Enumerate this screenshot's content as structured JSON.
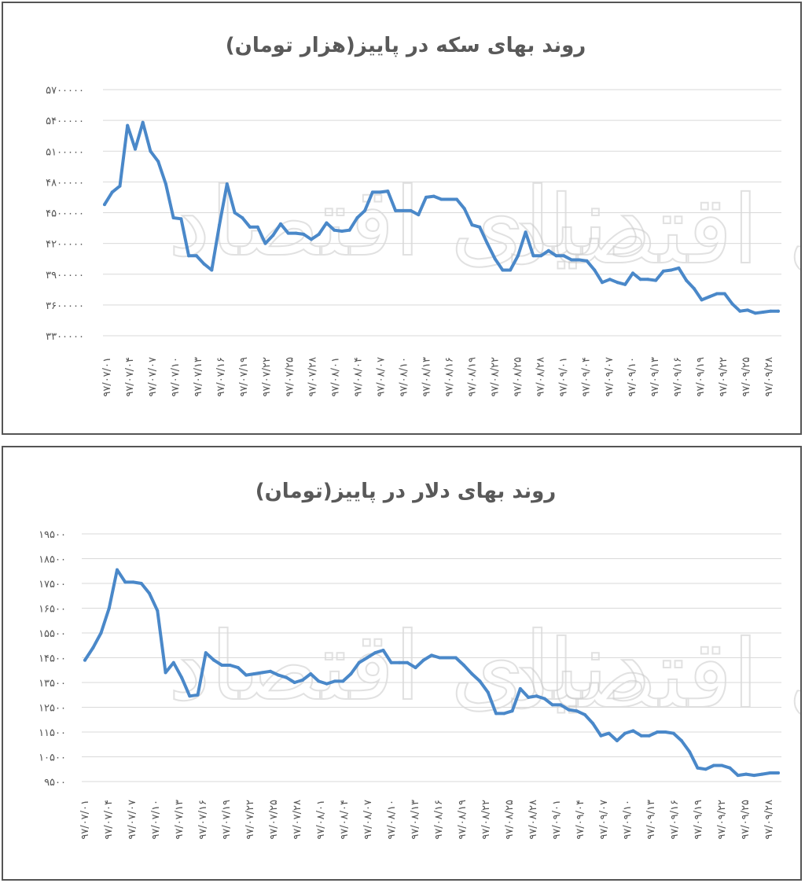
{
  "chart_data": [
    {
      "type": "line",
      "title": "روند بهای سکه در پاییز(هزار تومان)",
      "watermark": "دنیای اقتصاد",
      "color": "#4a88c9",
      "ylim": [
        3300000,
        5700000
      ],
      "yticks": [
        "۳۳۰۰۰۰۰",
        "۳۶۰۰۰۰۰",
        "۳۹۰۰۰۰۰",
        "۴۲۰۰۰۰۰",
        "۴۵۰۰۰۰۰",
        "۴۸۰۰۰۰۰",
        "۵۱۰۰۰۰۰",
        "۵۴۰۰۰۰۰",
        "۵۷۰۰۰۰۰"
      ],
      "xticks": [
        "۹۷/۰۷/۰۱",
        "۹۷/۰۷/۰۴",
        "۹۷/۰۷/۰۷",
        "۹۷/۰۷/۱۰",
        "۹۷/۰۷/۱۳",
        "۹۷/۰۷/۱۶",
        "۹۷/۰۷/۱۹",
        "۹۷/۰۷/۲۲",
        "۹۷/۰۷/۲۵",
        "۹۷/۰۷/۲۸",
        "۹۷/۰۸/۰۱",
        "۹۷/۰۸/۰۴",
        "۹۷/۰۸/۰۷",
        "۹۷/۰۸/۱۰",
        "۹۷/۰۸/۱۳",
        "۹۷/۰۸/۱۶",
        "۹۷/۰۸/۱۹",
        "۹۷/۰۸/۲۲",
        "۹۷/۰۸/۲۵",
        "۹۷/۰۸/۲۸",
        "۹۷/۰۹/۰۱",
        "۹۷/۰۹/۰۴",
        "۹۷/۰۹/۰۷",
        "۹۷/۰۹/۱۰",
        "۹۷/۰۹/۱۳",
        "۹۷/۰۹/۱۶",
        "۹۷/۰۹/۱۹",
        "۹۷/۰۹/۲۲",
        "۹۷/۰۹/۲۵",
        "۹۷/۰۹/۲۸"
      ],
      "values": [
        4580000,
        4700000,
        4760000,
        5350000,
        5120000,
        5380000,
        5100000,
        5000000,
        4780000,
        4450000,
        4440000,
        4080000,
        4080000,
        4000000,
        3940000,
        4380000,
        4780000,
        4500000,
        4450000,
        4360000,
        4360000,
        4200000,
        4280000,
        4390000,
        4300000,
        4300000,
        4290000,
        4240000,
        4290000,
        4400000,
        4330000,
        4320000,
        4330000,
        4450000,
        4520000,
        4700000,
        4700000,
        4710000,
        4520000,
        4520000,
        4520000,
        4480000,
        4650000,
        4660000,
        4630000,
        4630000,
        4630000,
        4540000,
        4380000,
        4360000,
        4200000,
        4050000,
        3940000,
        3940000,
        4080000,
        4310000,
        4080000,
        4080000,
        4130000,
        4080000,
        4080000,
        4040000,
        4040000,
        4030000,
        3940000,
        3820000,
        3850000,
        3820000,
        3800000,
        3910000,
        3850000,
        3850000,
        3840000,
        3930000,
        3940000,
        3960000,
        3840000,
        3760000,
        3650000,
        3680000,
        3710000,
        3710000,
        3610000,
        3540000,
        3550000,
        3520000,
        3530000,
        3540000,
        3540000
      ]
    },
    {
      "type": "line",
      "title": "روند بهای دلار در پاییز(تومان)",
      "watermark": "دنیای اقتصاد",
      "color": "#4a88c9",
      "ylim": [
        9500,
        19500
      ],
      "yticks": [
        "۹۵۰۰",
        "۱۰۵۰۰",
        "۱۱۵۰۰",
        "۱۲۵۰۰",
        "۱۳۵۰۰",
        "۱۴۵۰۰",
        "۱۵۵۰۰",
        "۱۶۵۰۰",
        "۱۷۵۰۰",
        "۱۸۵۰۰",
        "۱۹۵۰۰"
      ],
      "xticks": [
        "۹۷/۰۷/۰۱",
        "۹۷/۰۷/۰۴",
        "۹۷/۰۷/۰۷",
        "۹۷/۰۷/۱۰",
        "۹۷/۰۷/۱۳",
        "۹۷/۰۷/۱۶",
        "۹۷/۰۷/۱۹",
        "۹۷/۰۷/۲۲",
        "۹۷/۰۷/۲۵",
        "۹۷/۰۷/۲۸",
        "۹۷/۰۸/۰۱",
        "۹۷/۰۸/۰۴",
        "۹۷/۰۸/۰۷",
        "۹۷/۰۸/۱۰",
        "۹۷/۰۸/۱۳",
        "۹۷/۰۸/۱۶",
        "۹۷/۰۸/۱۹",
        "۹۷/۰۸/۲۲",
        "۹۷/۰۸/۲۵",
        "۹۷/۰۸/۲۸",
        "۹۷/۰۹/۰۱",
        "۹۷/۰۹/۰۴",
        "۹۷/۰۹/۰۷",
        "۹۷/۰۹/۱۰",
        "۹۷/۰۹/۱۳",
        "۹۷/۰۹/۱۶",
        "۹۷/۰۹/۱۹",
        "۹۷/۰۹/۲۲",
        "۹۷/۰۹/۲۵",
        "۹۷/۰۹/۲۸"
      ],
      "values": [
        14400,
        14900,
        15500,
        16500,
        18050,
        17550,
        17550,
        17500,
        17100,
        16400,
        13900,
        14300,
        13700,
        12950,
        13000,
        14700,
        14400,
        14200,
        14200,
        14100,
        13800,
        13850,
        13900,
        13950,
        13800,
        13700,
        13500,
        13600,
        13850,
        13550,
        13450,
        13550,
        13550,
        13850,
        14300,
        14500,
        14700,
        14800,
        14300,
        14300,
        14300,
        14100,
        14400,
        14600,
        14500,
        14500,
        14500,
        14200,
        13850,
        13550,
        13100,
        12250,
        12250,
        12350,
        13250,
        12900,
        12950,
        12850,
        12600,
        12600,
        12400,
        12350,
        12200,
        11850,
        11350,
        11450,
        11150,
        11450,
        11550,
        11350,
        11350,
        11500,
        11500,
        11450,
        11150,
        10700,
        10050,
        10000,
        10150,
        10150,
        10050,
        9750,
        9800,
        9750,
        9800,
        9850,
        9850
      ]
    }
  ]
}
